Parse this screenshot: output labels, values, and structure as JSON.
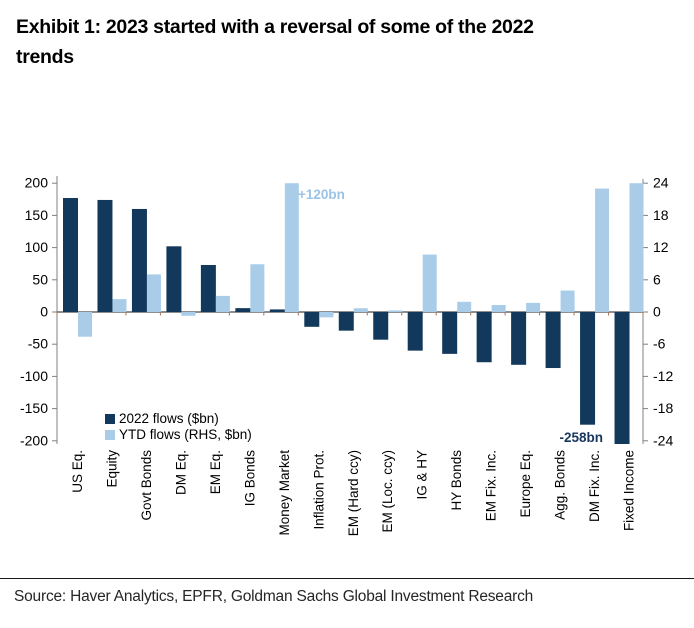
{
  "title_lines": [
    "Exhibit 1: 2023 started with a reversal of some of the 2022",
    "trends"
  ],
  "title": "Exhibit 1: 2023 started with a reversal of some of the 2022 trends",
  "source": "Source: Haver Analytics, EPFR, Goldman Sachs Global Investment Research",
  "chart_data": {
    "type": "bar",
    "title": "",
    "categories": [
      "US Eq.",
      "Equity",
      "Govt Bonds",
      "DM Eq.",
      "EM Eq.",
      "IG Bonds",
      "Money Market",
      "Inflation Prot.",
      "EM (Hard ccy)",
      "EM (Loc. ccy)",
      "IG & HY",
      "HY Bonds",
      "EM Fix. Inc.",
      "Europe Eq.",
      "Agg. Bonds",
      "DM Fix. Inc.",
      "Fixed Income"
    ],
    "series": [
      {
        "name": "2022 flows ($bn)",
        "axis": "left",
        "values": [
          177,
          174,
          160,
          102,
          73,
          6,
          4,
          -23,
          -29,
          -43,
          -60,
          -65,
          -78,
          -82,
          -87,
          -175,
          -258
        ],
        "note": "Fixed Income bar (-258) is clipped at the -200 axis floor"
      },
      {
        "name": "YTD flows (RHS, $bn)",
        "axis": "right",
        "values": [
          -4.6,
          2.4,
          7.0,
          -0.7,
          3.0,
          8.9,
          120,
          -1.0,
          0.7,
          0.3,
          10.7,
          1.9,
          1.3,
          1.7,
          4.0,
          23.0,
          24.0
        ],
        "note": "Money Market bar (+120) is clipped at the +24 axis top"
      }
    ],
    "left_axis": {
      "min": -200,
      "max": 200,
      "step": 50,
      "ticks": [
        200,
        150,
        100,
        50,
        0,
        -50,
        -100,
        -150,
        -200
      ]
    },
    "right_axis": {
      "min": -24,
      "max": 24,
      "step": 6,
      "ticks": [
        24,
        18,
        12,
        6,
        0,
        -6,
        -12,
        -18,
        -24
      ]
    },
    "grid": false,
    "legend_position": "inside-bottom-left",
    "annotations": [
      {
        "id": "money-market-ytd",
        "text": "+120bn"
      },
      {
        "id": "fixed-income-2022",
        "text": "-258bn"
      }
    ],
    "colors": {
      "series_2022": "#12395b",
      "series_ytd": "#a9cde9",
      "annotation_positive": "#9cc2e5",
      "annotation_negative": "#17365d",
      "axis_line": "#808080",
      "zero_line": "#4a4a4a",
      "category_tick": "#a8745a",
      "text": "#000000"
    }
  }
}
